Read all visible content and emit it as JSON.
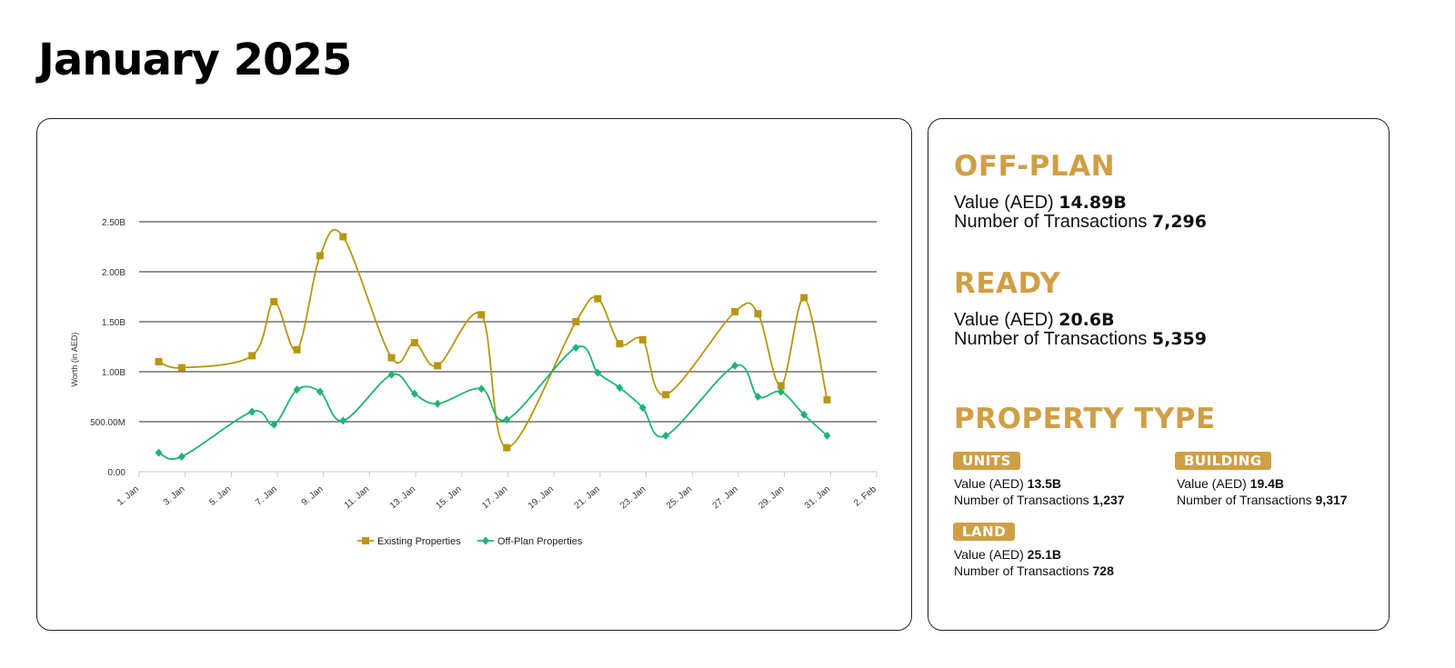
{
  "page": {
    "title": "January 2025"
  },
  "off_plan": {
    "heading": "OFF-PLAN",
    "value_label": "Value (AED)",
    "value": "14.89B",
    "tx_label": "Number of Transactions",
    "tx": "7,296"
  },
  "ready": {
    "heading": "READY",
    "value_label": "Value (AED)",
    "value": "20.6B",
    "tx_label": "Number of Transactions",
    "tx": "5,359"
  },
  "property_type": {
    "heading": "PROPERTY TYPE",
    "units": {
      "label": "UNITS",
      "value_label": "Value (AED)",
      "value": "13.5B",
      "tx_label": "Number of Transactions",
      "tx": "1,237"
    },
    "building": {
      "label": "BUILDING",
      "value_label": "Value (AED)",
      "value": "19.4B",
      "tx_label": "Number of Transactions",
      "tx": "9,317"
    },
    "land": {
      "label": "LAND",
      "value_label": "Value (AED)",
      "value": "25.1B",
      "tx_label": "Number of Transactions",
      "tx": "728"
    }
  },
  "chart_data": {
    "type": "line",
    "title": "",
    "xlabel": "",
    "ylabel": "Worth (in AED)",
    "x_ticks": [
      "1. Jan",
      "3. Jan",
      "5. Jan",
      "7. Jan",
      "9. Jan",
      "11. Jan",
      "13. Jan",
      "15. Jan",
      "17. Jan",
      "19. Jan",
      "21. Jan",
      "23. Jan",
      "25. Jan",
      "27. Jan",
      "29. Jan",
      "31. Jan",
      "2. Feb"
    ],
    "y_ticks": [
      "0.00",
      "500.00M",
      "1.00B",
      "1.50B",
      "2.00B",
      "2.50B"
    ],
    "ylim": [
      0,
      2.5
    ],
    "xlim": [
      1,
      33
    ],
    "grid": true,
    "legend": "bottom-center",
    "series": [
      {
        "name": "Existing Properties",
        "color": "#b8960f",
        "marker": "square",
        "x": [
          1.85,
          2.85,
          5.9,
          6.85,
          7.85,
          8.85,
          9.85,
          11.95,
          12.95,
          13.95,
          15.85,
          16.95,
          19.95,
          20.9,
          21.85,
          22.85,
          23.85,
          26.85,
          27.85,
          28.85,
          29.85,
          30.85
        ],
        "y": [
          1.1,
          1.04,
          1.16,
          1.7,
          1.22,
          2.16,
          2.35,
          1.14,
          1.29,
          1.06,
          1.57,
          0.24,
          1.5,
          1.73,
          1.28,
          1.32,
          0.77,
          1.6,
          1.58,
          0.86,
          1.74,
          0.72
        ]
      },
      {
        "name": "Off-Plan Properties",
        "color": "#1fb472",
        "marker": "diamond",
        "x": [
          1.85,
          2.85,
          5.9,
          6.85,
          7.85,
          8.85,
          9.85,
          11.95,
          12.95,
          13.95,
          15.85,
          16.95,
          19.95,
          20.9,
          21.85,
          22.85,
          23.85,
          26.85,
          27.85,
          28.85,
          29.85,
          30.85
        ],
        "y": [
          0.19,
          0.15,
          0.6,
          0.47,
          0.82,
          0.8,
          0.51,
          0.97,
          0.78,
          0.68,
          0.83,
          0.52,
          1.24,
          0.99,
          0.84,
          0.64,
          0.36,
          1.06,
          0.75,
          0.8,
          0.57,
          0.36
        ]
      }
    ]
  }
}
